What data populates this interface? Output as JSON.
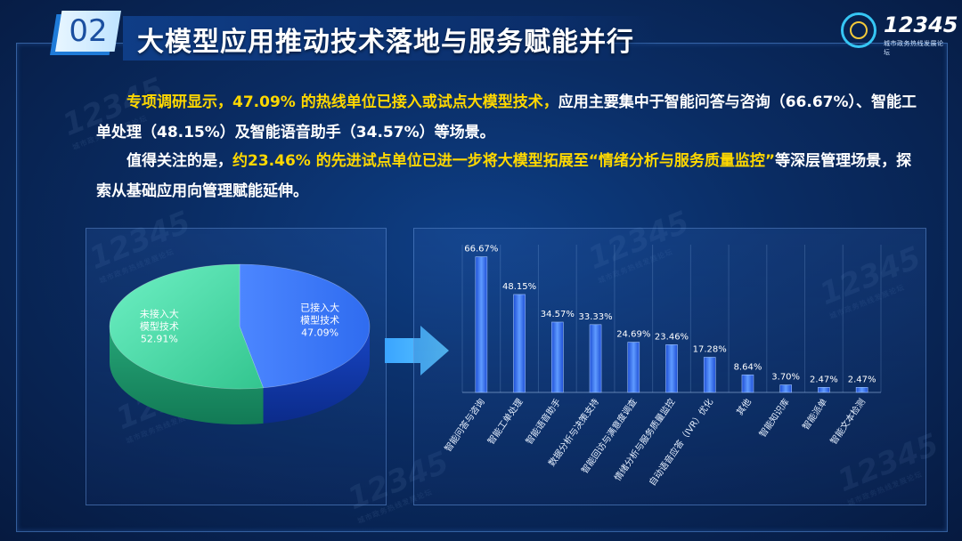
{
  "header": {
    "section_number": "02",
    "title": "大模型应用推动技术落地与服务赋能并行",
    "logo_text": "12345",
    "logo_subtitle": "城市政务热线发展论坛"
  },
  "watermark": {
    "text": "12345",
    "subtitle": "城市政务热线发展论坛"
  },
  "paragraph1": {
    "highlight": "专项调研显示，47.09% 的热线单位已接入或试点大模型技术，",
    "rest": "应用主要集中于智能问答与咨询（66.67%）、智能工单处理（48.15%）及智能语音助手（34.57%）等场景。"
  },
  "paragraph2": {
    "prefix": "值得关注的是，",
    "highlight": "约23.46% 的先进试点单位已进一步将大模型拓展至“情绪分析与服务质量监控”",
    "rest": "等深层管理场景，探索从基础应用向管理赋能延伸。"
  },
  "chart_data": [
    {
      "type": "pie",
      "slices": [
        {
          "label_line1": "已接入大",
          "label_line2": "模型技术",
          "value": 47.09,
          "value_label": "47.09%",
          "color": "#2a6df0"
        },
        {
          "label_line1": "未接入大",
          "label_line2": "模型技术",
          "value": 52.91,
          "value_label": "52.91%",
          "color": "#3cd9a4"
        }
      ]
    },
    {
      "type": "bar",
      "categories": [
        "智能问答与咨询",
        "智能工单处理",
        "智能语音助手",
        "数据分析与决策支持",
        "智能回访与满意度调查",
        "情绪分析与服务质量监控",
        "自动语音应答（IVR）优化",
        "其他",
        "智能知识库",
        "智能派单",
        "智能文本检测"
      ],
      "values": [
        66.67,
        48.15,
        34.57,
        33.33,
        24.69,
        23.46,
        17.28,
        8.64,
        3.7,
        2.47,
        2.47
      ],
      "value_labels": [
        "66.67%",
        "48.15%",
        "34.57%",
        "33.33%",
        "24.69%",
        "23.46%",
        "17.28%",
        "8.64%",
        "3.70%",
        "2.47%",
        "2.47%"
      ],
      "ylim": [
        0,
        70
      ],
      "grid": "vertical",
      "bar_color": "#3a78f2"
    }
  ]
}
